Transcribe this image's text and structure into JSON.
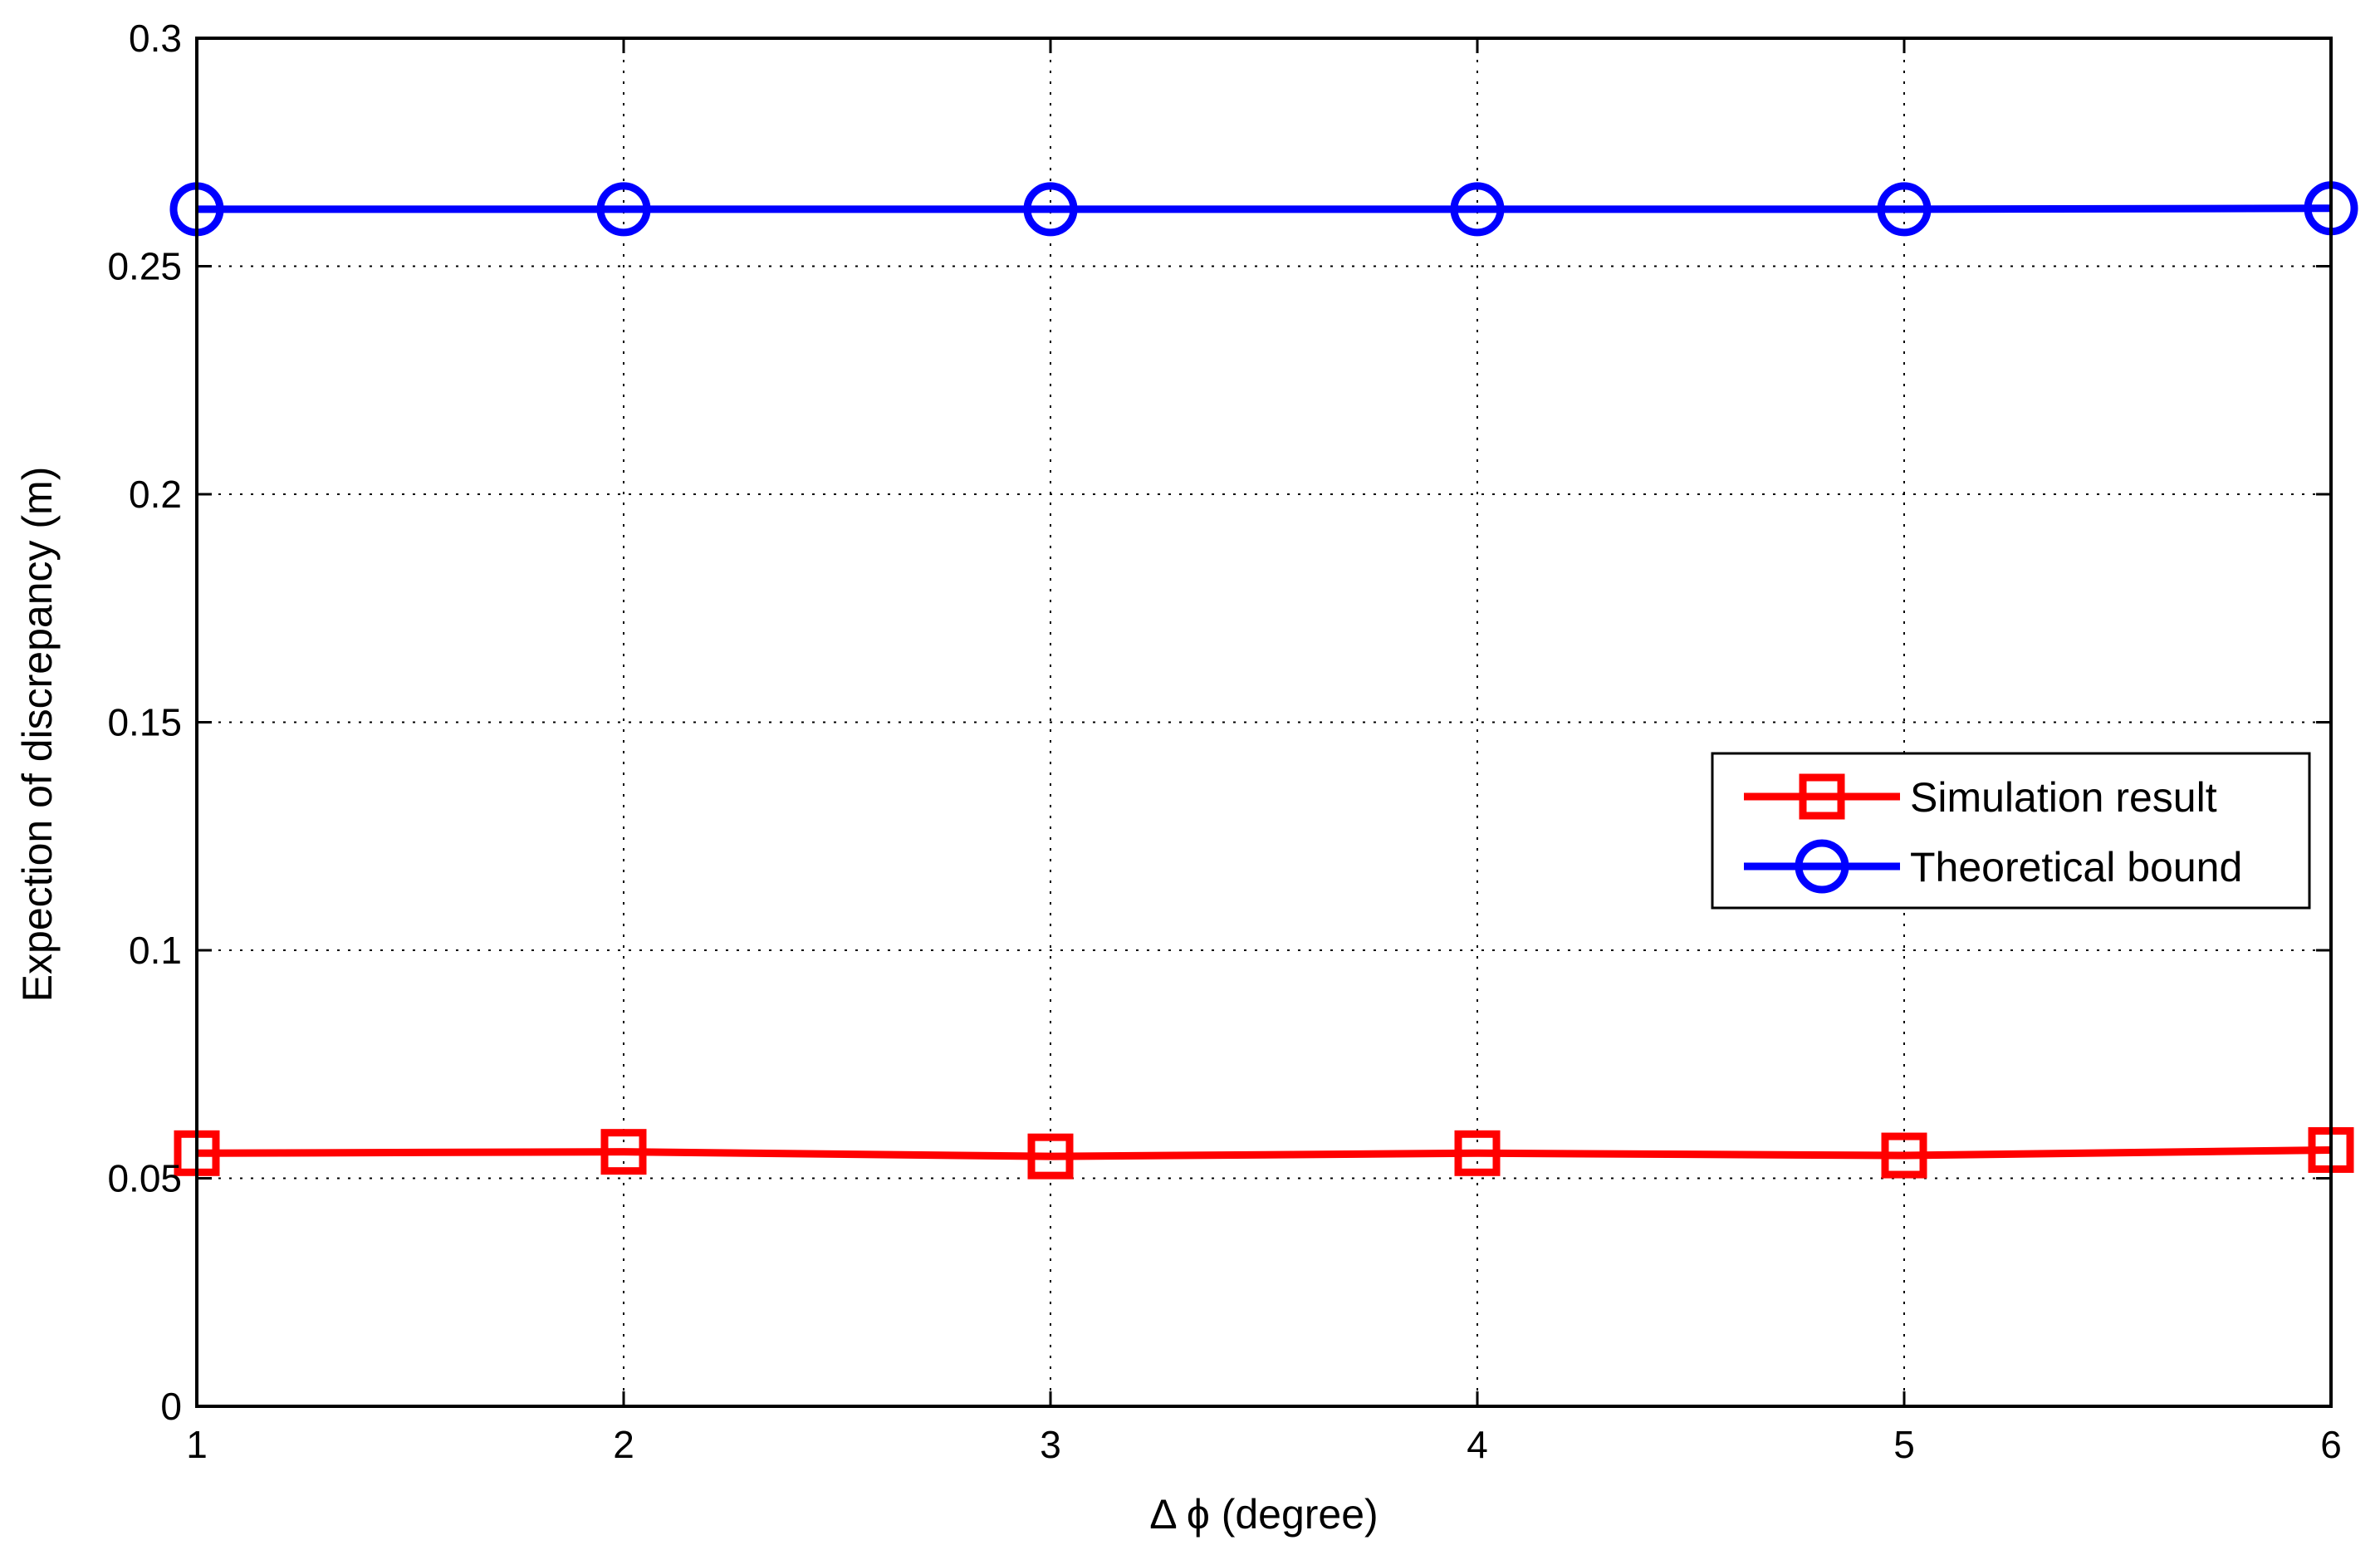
{
  "chart_data": {
    "type": "line",
    "xlabel": "Δ ϕ (degree)",
    "ylabel": "Expection of discrepancy (m)",
    "xlim": [
      1,
      6
    ],
    "ylim": [
      0,
      0.3
    ],
    "x_ticks": [
      "1",
      "2",
      "3",
      "4",
      "5",
      "6"
    ],
    "y_ticks": [
      "0",
      "0.05",
      "0.1",
      "0.15",
      "0.2",
      "0.25",
      "0.3"
    ],
    "grid": true,
    "legend_position": "right",
    "x": [
      1,
      2,
      3,
      4,
      5,
      6
    ],
    "series": [
      {
        "name": "Simulation result",
        "color": "#ff0000",
        "marker": "square",
        "values": [
          0.0555,
          0.0558,
          0.0548,
          0.0555,
          0.055,
          0.0562
        ]
      },
      {
        "name": "Theoretical bound",
        "color": "#0000ff",
        "marker": "circle",
        "values": [
          0.2625,
          0.2625,
          0.2625,
          0.2625,
          0.2625,
          0.2627
        ]
      }
    ]
  }
}
